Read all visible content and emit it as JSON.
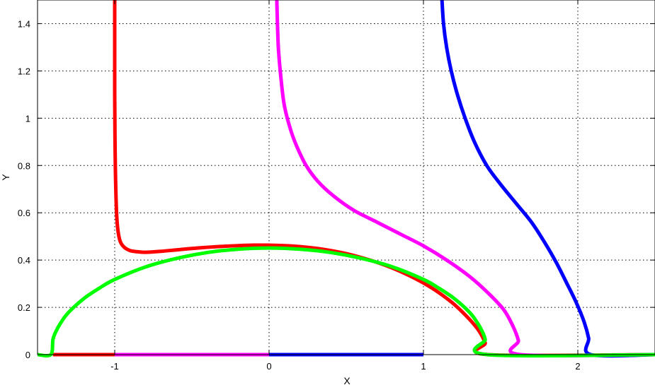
{
  "chart_data": {
    "type": "line",
    "title": "",
    "xlabel": "X",
    "ylabel": "Y",
    "xlim": [
      -1.5,
      2.5
    ],
    "ylim": [
      0,
      1.5
    ],
    "xticks": [
      -1,
      0,
      1,
      2
    ],
    "xtick_labels": [
      "-1",
      "0",
      "1",
      "2"
    ],
    "yticks": [
      0,
      0.2,
      0.4,
      0.6,
      0.8,
      1.0,
      1.2,
      1.4
    ],
    "ytick_labels": [
      "0",
      "0.2",
      "0.4",
      "0.6",
      "0.8",
      "1",
      "1.2",
      "1.4"
    ],
    "grid": true,
    "series": [
      {
        "color": "#ff0000",
        "points": [
          [
            -1.0,
            1.5
          ],
          [
            -1.0,
            1.3
          ],
          [
            -1.0,
            1.1
          ],
          [
            -0.999,
            1.0
          ],
          [
            -0.998,
            0.9
          ],
          [
            -0.996,
            0.8
          ],
          [
            -0.993,
            0.7
          ],
          [
            -0.988,
            0.6
          ],
          [
            -0.98,
            0.53
          ],
          [
            -0.965,
            0.48
          ],
          [
            -0.94,
            0.455
          ],
          [
            -0.9,
            0.44
          ],
          [
            -0.85,
            0.435
          ],
          [
            -0.8,
            0.433
          ],
          [
            -0.7,
            0.437
          ],
          [
            -0.6,
            0.443
          ],
          [
            -0.5,
            0.449
          ],
          [
            -0.4,
            0.454
          ],
          [
            -0.3,
            0.458
          ],
          [
            -0.2,
            0.461
          ],
          [
            -0.1,
            0.463
          ],
          [
            0.0,
            0.463
          ],
          [
            0.1,
            0.461
          ],
          [
            0.2,
            0.457
          ],
          [
            0.3,
            0.45
          ],
          [
            0.4,
            0.44
          ],
          [
            0.5,
            0.427
          ],
          [
            0.6,
            0.41
          ],
          [
            0.7,
            0.39
          ],
          [
            0.8,
            0.366
          ],
          [
            0.9,
            0.337
          ],
          [
            1.0,
            0.303
          ],
          [
            1.1,
            0.262
          ],
          [
            1.2,
            0.212
          ],
          [
            1.3,
            0.148
          ],
          [
            1.36,
            0.1
          ],
          [
            1.4,
            0.05
          ],
          [
            1.42,
            0.0
          ],
          [
            2.5,
            0.0
          ]
        ]
      },
      {
        "color": "#ff00ff",
        "points": [
          [
            0.05,
            1.5
          ],
          [
            0.06,
            1.3
          ],
          [
            0.08,
            1.15
          ],
          [
            0.1,
            1.05
          ],
          [
            0.14,
            0.95
          ],
          [
            0.18,
            0.88
          ],
          [
            0.24,
            0.8
          ],
          [
            0.32,
            0.73
          ],
          [
            0.42,
            0.67
          ],
          [
            0.55,
            0.61
          ],
          [
            0.7,
            0.56
          ],
          [
            0.85,
            0.51
          ],
          [
            1.0,
            0.46
          ],
          [
            1.15,
            0.4
          ],
          [
            1.3,
            0.33
          ],
          [
            1.42,
            0.26
          ],
          [
            1.52,
            0.19
          ],
          [
            1.58,
            0.12
          ],
          [
            1.615,
            0.06
          ],
          [
            1.63,
            0.0
          ],
          [
            2.5,
            0.0
          ]
        ]
      },
      {
        "color": "#0000ff",
        "points": [
          [
            1.12,
            1.5
          ],
          [
            1.13,
            1.4
          ],
          [
            1.15,
            1.3
          ],
          [
            1.18,
            1.2
          ],
          [
            1.22,
            1.1
          ],
          [
            1.27,
            1.0
          ],
          [
            1.33,
            0.9
          ],
          [
            1.41,
            0.8
          ],
          [
            1.5,
            0.72
          ],
          [
            1.6,
            0.64
          ],
          [
            1.7,
            0.56
          ],
          [
            1.78,
            0.48
          ],
          [
            1.86,
            0.39
          ],
          [
            1.93,
            0.3
          ],
          [
            1.99,
            0.22
          ],
          [
            2.04,
            0.14
          ],
          [
            2.07,
            0.07
          ],
          [
            2.085,
            0.0
          ],
          [
            2.5,
            0.0
          ]
        ]
      },
      {
        "color": "#00ff00",
        "points": [
          [
            -1.5,
            0.0
          ],
          [
            -1.414,
            0.0
          ],
          [
            -1.4,
            0.064
          ],
          [
            -1.38,
            0.099
          ],
          [
            -1.35,
            0.134
          ],
          [
            -1.3,
            0.178
          ],
          [
            -1.2,
            0.237
          ],
          [
            -1.1,
            0.281
          ],
          [
            -1.0,
            0.318
          ],
          [
            -0.8,
            0.371
          ],
          [
            -0.6,
            0.407
          ],
          [
            -0.4,
            0.432
          ],
          [
            -0.2,
            0.446
          ],
          [
            0.0,
            0.451
          ],
          [
            0.2,
            0.446
          ],
          [
            0.4,
            0.432
          ],
          [
            0.6,
            0.407
          ],
          [
            0.8,
            0.371
          ],
          [
            1.0,
            0.318
          ],
          [
            1.1,
            0.281
          ],
          [
            1.2,
            0.237
          ],
          [
            1.3,
            0.178
          ],
          [
            1.35,
            0.134
          ],
          [
            1.38,
            0.099
          ],
          [
            1.4,
            0.064
          ],
          [
            1.414,
            0.0
          ],
          [
            2.5,
            0.0
          ]
        ]
      }
    ],
    "baseline_segments": [
      {
        "color": "#ff0000",
        "x": [
          -1.4,
          -1.0
        ]
      },
      {
        "color": "#ff00ff",
        "x": [
          -1.0,
          0.0
        ]
      },
      {
        "color": "#0000ff",
        "x": [
          0.0,
          1.0
        ]
      },
      {
        "color": "#000000",
        "x": [
          1.0,
          1.4
        ]
      }
    ]
  }
}
